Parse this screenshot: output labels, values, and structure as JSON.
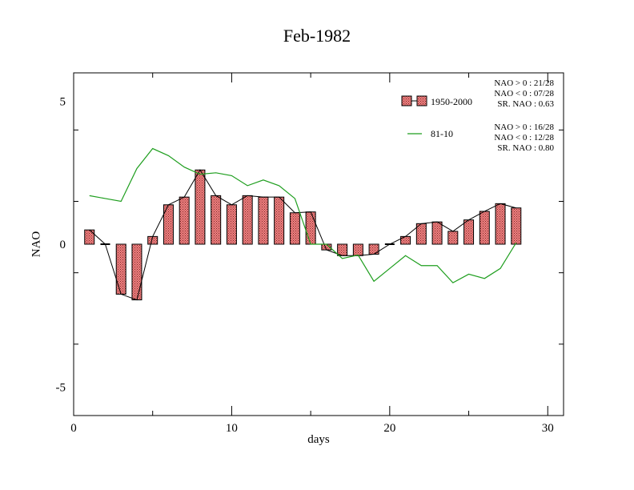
{
  "chart_data": {
    "type": "bar",
    "title": "Feb-1982",
    "xlabel": "days",
    "ylabel": "NAO",
    "xlim": [
      0,
      31
    ],
    "ylim": [
      -6,
      6
    ],
    "x_ticks": [
      0,
      10,
      20,
      30
    ],
    "y_ticks": [
      -5,
      0,
      5
    ],
    "grid": false,
    "legend_position": "top-right",
    "x": [
      1,
      2,
      3,
      4,
      5,
      6,
      7,
      8,
      9,
      10,
      11,
      12,
      13,
      14,
      15,
      16,
      17,
      18,
      19,
      20,
      21,
      22,
      23,
      24,
      25,
      26,
      27,
      28
    ],
    "series": [
      {
        "name": "1950-2000",
        "kind": "bar-with-line",
        "color": "#f08080",
        "values": [
          0.5,
          0.0,
          -1.75,
          -1.95,
          0.27,
          1.38,
          1.65,
          2.6,
          1.7,
          1.38,
          1.7,
          1.65,
          1.65,
          1.1,
          1.13,
          -0.2,
          -0.4,
          -0.4,
          -0.35,
          0.0,
          0.27,
          0.72,
          0.78,
          0.45,
          0.85,
          1.15,
          1.42,
          1.27
        ]
      },
      {
        "name": "81-10",
        "kind": "line",
        "color": "#1e9e1e",
        "values": [
          1.7,
          1.6,
          1.5,
          2.65,
          3.35,
          3.1,
          2.7,
          2.45,
          2.5,
          2.4,
          2.05,
          2.25,
          2.05,
          1.6,
          0.0,
          0.0,
          -0.5,
          -0.38,
          -1.3,
          -0.85,
          -0.4,
          -0.75,
          -0.75,
          -1.35,
          -1.05,
          -1.2,
          -0.85,
          0.05
        ]
      }
    ],
    "stats": [
      [
        "NAO > 0 : 21/28",
        "NAO < 0 : 07/28",
        "SR. NAO :  0.63"
      ],
      [
        "NAO > 0 : 16/28",
        "NAO < 0 : 12/28",
        "SR. NAO :  0.80"
      ]
    ]
  }
}
